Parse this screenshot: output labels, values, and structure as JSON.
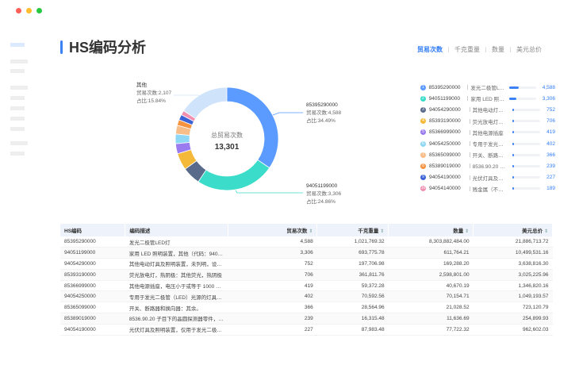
{
  "window_controls": {
    "colors": [
      "#ff5f57",
      "#febc2e",
      "#28c840"
    ]
  },
  "page_title": "HS编码分析",
  "tabs": [
    {
      "label": "贸易次数",
      "active": true
    },
    {
      "label": "千克重量"
    },
    {
      "label": "数量"
    },
    {
      "label": "美元总价"
    }
  ],
  "donut": {
    "center_title": "总贸易次数",
    "center_value": "13,301",
    "total": 13301,
    "slices": [
      {
        "code": "85395290000",
        "value": 4588,
        "color": "#5b9bff"
      },
      {
        "code": "94051199000",
        "value": 3306,
        "color": "#3bdcc9"
      },
      {
        "code": "94054290000",
        "value": 752,
        "color": "#5a6a8a"
      },
      {
        "code": "85393190000",
        "value": 706,
        "color": "#f5b93a"
      },
      {
        "code": "85366999000",
        "value": 419,
        "color": "#9b7bf0"
      },
      {
        "code": "94054250000",
        "value": 402,
        "color": "#8fd8f5"
      },
      {
        "code": "85365099000",
        "value": 366,
        "color": "#f7be8a"
      },
      {
        "code": "85389019000",
        "value": 239,
        "color": "#f59340"
      },
      {
        "code": "94054190000",
        "value": 227,
        "color": "#3a62d6"
      },
      {
        "code": "94054140000",
        "value": 189,
        "color": "#f08fb0"
      },
      {
        "code": "其他",
        "value": 2107,
        "color": "#cfe3fa"
      }
    ],
    "labels": {
      "other": {
        "name": "其他",
        "count": "贸易次数:2,107",
        "pct": "占比:15.84%"
      },
      "first": {
        "name": "85395290000",
        "count": "贸易次数:4,588",
        "pct": "占比:34.49%"
      },
      "second": {
        "name": "94051199000",
        "count": "贸易次数:3,306",
        "pct": "占比:24.86%"
      }
    }
  },
  "ranking": [
    {
      "rank": "1",
      "code": "85395290000",
      "desc": "发光二极管LED灯",
      "value": "4,588",
      "fraction": 0.3449
    },
    {
      "rank": "2",
      "code": "94051199000",
      "desc": "家用 LED 照明装置",
      "value": "3,306",
      "fraction": 0.2486
    },
    {
      "rank": "3",
      "code": "94054290000",
      "desc": "其他电动灯具及照明装置",
      "value": "752",
      "fraction": 0.0565
    },
    {
      "rank": "4",
      "code": "85393190000",
      "desc": "荧光放电灯，热阴极",
      "value": "706",
      "fraction": 0.0531
    },
    {
      "rank": "5",
      "code": "85366999000",
      "desc": "其他电源插座",
      "value": "419",
      "fraction": 0.0315
    },
    {
      "rank": "6",
      "code": "94054250000",
      "desc": "专用于发光二极管",
      "value": "402",
      "fraction": 0.0302
    },
    {
      "rank": "7",
      "code": "85365099000",
      "desc": "开关、断路器和换向器",
      "value": "366",
      "fraction": 0.0275
    },
    {
      "rank": "8",
      "code": "85389019000",
      "desc": "8536.90.20 子目下的",
      "value": "239",
      "fraction": 0.018
    },
    {
      "rank": "9",
      "code": "94054190000",
      "desc": "光伏灯具及照明装置",
      "value": "227",
      "fraction": 0.0171
    },
    {
      "rank": "10",
      "code": "94054140000",
      "desc": "贱金属（不锈钢）",
      "value": "189",
      "fraction": 0.0142
    }
  ],
  "table": {
    "headers": [
      "HS编码",
      "编码描述",
      "贸易次数",
      "千克重量",
      "数量",
      "美元总价"
    ],
    "rows": [
      [
        "85395290000",
        "发光二极管LED灯",
        "4,588",
        "1,021,769.32",
        "8,303,882,484.00",
        "21,886,713.72"
      ],
      [
        "94051199000",
        "家用 LED 照明装置，其他（代码：9405.1...",
        "3,306",
        "693,775.78",
        "611,764.21",
        "10,499,531.16"
      ],
      [
        "94054290000",
        "其他电动灯具及照明装置，未列明，设计...",
        "752",
        "197,706.98",
        "169,288.20",
        "3,638,816.30"
      ],
      [
        "85393190000",
        "荧光放电灯，热阴极：其他荧光，热阴极",
        "706",
        "361,811.76",
        "2,598,801.00",
        "3,025,225.96"
      ],
      [
        "85366999000",
        "其他电源插座，电压小于或等于 1000 伏：...",
        "419",
        "59,372.28",
        "40,670.19",
        "1,346,820.16"
      ],
      [
        "94054250000",
        "专用于发光二极管（LED）光源的灯具及...",
        "402",
        "70,592.56",
        "70,154.71",
        "1,049,193.57"
      ],
      [
        "85365099000",
        "开关、断路器和换向器：其余。",
        "366",
        "28,564.96",
        "21,028.52",
        "723,120.79"
      ],
      [
        "85389019000",
        "8536.90.20 子目下的晶圆探测器零件，其...",
        "239",
        "16,315.48",
        "11,636.69",
        "254,899.93"
      ],
      [
        "94054190000",
        "光伏灯具及照明装置，仅用于发光二极管...",
        "227",
        "87,983.48",
        "77,722.32",
        "962,602.03"
      ]
    ]
  }
}
